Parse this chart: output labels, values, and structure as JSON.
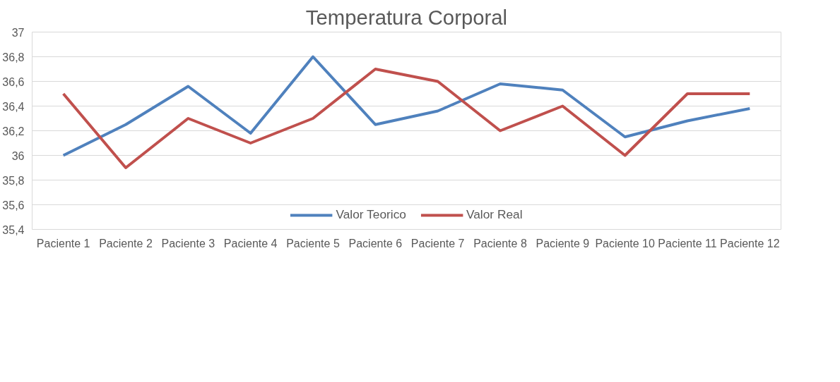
{
  "chart_data": {
    "type": "line",
    "title": "Temperatura Corporal",
    "categories": [
      "Paciente 1",
      "Paciente 2",
      "Paciente 3",
      "Paciente 4",
      "Paciente 5",
      "Paciente 6",
      "Paciente 7",
      "Paciente 8",
      "Paciente 9",
      "Paciente 10",
      "Paciente 11",
      "Paciente 12"
    ],
    "series": [
      {
        "name": "Valor Teorico",
        "color": "#4f81bd",
        "values": [
          36.0,
          36.25,
          36.56,
          36.18,
          36.8,
          36.25,
          36.36,
          36.58,
          36.53,
          36.15,
          36.28,
          36.38
        ]
      },
      {
        "name": "Valor Real",
        "color": "#c0504d",
        "values": [
          36.5,
          35.9,
          36.3,
          36.1,
          36.3,
          36.7,
          36.6,
          36.2,
          36.4,
          36.0,
          36.5,
          36.5
        ]
      }
    ],
    "ylim": [
      35.4,
      37
    ],
    "yticks": [
      {
        "value": 35.4,
        "label": "35,4"
      },
      {
        "value": 35.6,
        "label": "35,6"
      },
      {
        "value": 35.8,
        "label": "35,8"
      },
      {
        "value": 36,
        "label": "36"
      },
      {
        "value": 36.2,
        "label": "36,2"
      },
      {
        "value": 36.4,
        "label": "36,4"
      },
      {
        "value": 36.6,
        "label": "36,6"
      },
      {
        "value": 36.8,
        "label": "36,8"
      },
      {
        "value": 37,
        "label": "37"
      }
    ],
    "grid": "y",
    "legend": "bottom",
    "marker": "none",
    "line_style": "solid"
  }
}
